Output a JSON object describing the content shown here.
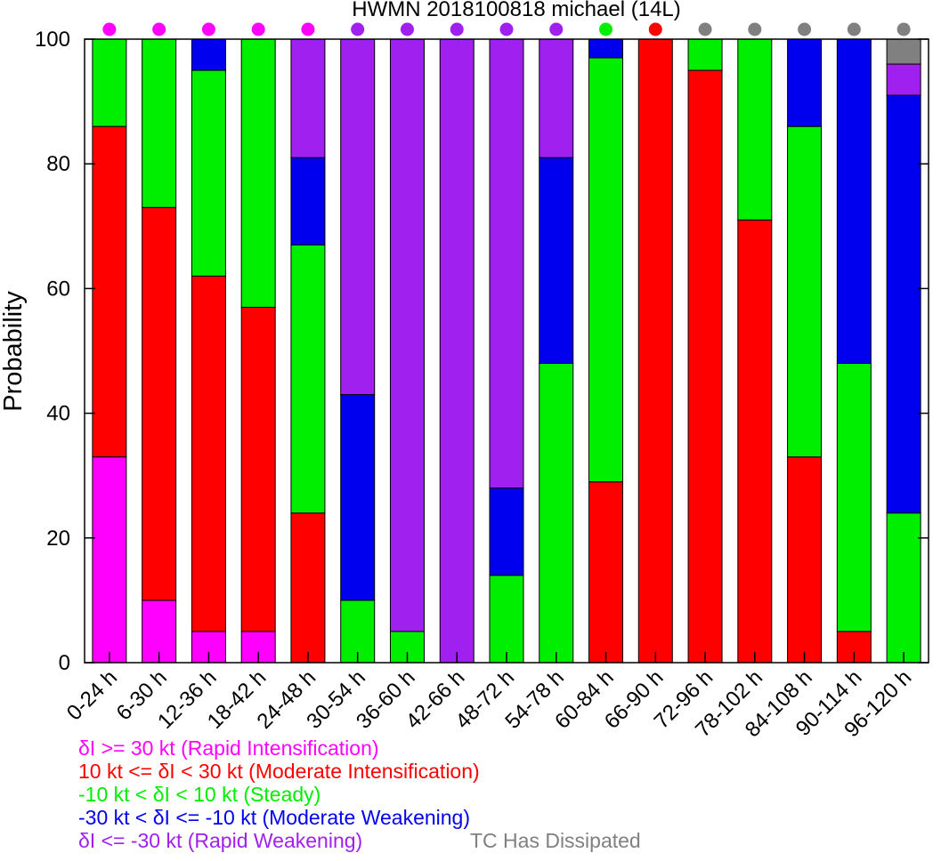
{
  "chart_data": {
    "type": "bar",
    "stacked": true,
    "title": "HWMN 2018100818 michael (14L)",
    "xlabel": "",
    "ylabel": "Probability",
    "ylim": [
      0,
      100
    ],
    "yticks": [
      0,
      20,
      40,
      60,
      80,
      100
    ],
    "grid": false,
    "categories": [
      "0-24 h",
      "6-30 h",
      "12-36 h",
      "18-42 h",
      "24-48 h",
      "30-54 h",
      "36-60 h",
      "42-66 h",
      "48-72 h",
      "54-78 h",
      "60-84 h",
      "66-90 h",
      "72-96 h",
      "78-102 h",
      "84-108 h",
      "90-114 h",
      "96-120 h"
    ],
    "series": [
      {
        "name": "δI >= 30 kt (Rapid Intensification)",
        "color": "#ff00ff",
        "values": [
          33,
          10,
          5,
          5,
          0,
          0,
          0,
          0,
          0,
          0,
          0,
          0,
          0,
          0,
          0,
          0,
          0
        ]
      },
      {
        "name": "10 kt <= δI < 30 kt (Moderate Intensification)",
        "color": "#ff0000",
        "values": [
          53,
          63,
          57,
          52,
          24,
          0,
          0,
          0,
          0,
          0,
          29,
          100,
          95,
          71,
          33,
          5,
          0
        ]
      },
      {
        "name": "-10 kt < δI < 10 kt (Steady)",
        "color": "#00ee00",
        "values": [
          14,
          27,
          33,
          43,
          43,
          10,
          5,
          0,
          14,
          48,
          68,
          0,
          5,
          29,
          53,
          43,
          24
        ]
      },
      {
        "name": "-30 kt < δI <= -10 kt (Moderate Weakening)",
        "color": "#0000ee",
        "values": [
          0,
          0,
          5,
          0,
          14,
          33,
          0,
          0,
          14,
          33,
          3,
          0,
          0,
          0,
          14,
          52,
          67
        ]
      },
      {
        "name": "δI <= -30 kt (Rapid Weakening)",
        "color": "#a020f0",
        "values": [
          0,
          0,
          0,
          0,
          19,
          57,
          95,
          100,
          72,
          19,
          0,
          0,
          0,
          0,
          0,
          0,
          5
        ]
      },
      {
        "name": "TC Has Dissipated",
        "color": "#808080",
        "values": [
          0,
          0,
          0,
          0,
          0,
          0,
          0,
          0,
          0,
          0,
          0,
          0,
          0,
          0,
          0,
          0,
          4
        ]
      }
    ],
    "top_dots": [
      "#ff00ff",
      "#ff00ff",
      "#ff00ff",
      "#ff00ff",
      "#ff00ff",
      "#a020f0",
      "#a020f0",
      "#a020f0",
      "#a020f0",
      "#a020f0",
      "#00ee00",
      "#ff0000",
      "#808080",
      "#808080",
      "#808080",
      "#808080",
      "#808080"
    ]
  }
}
